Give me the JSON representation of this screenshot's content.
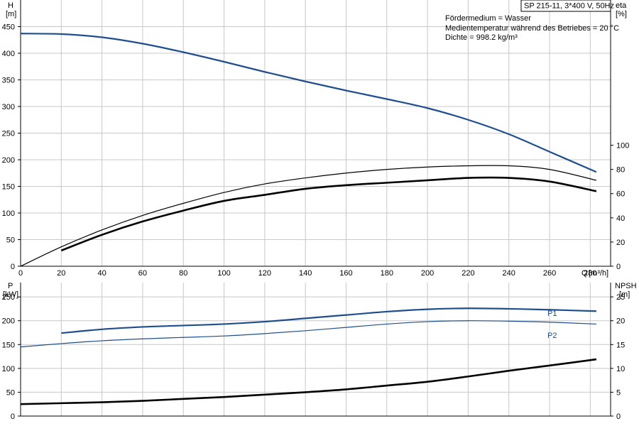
{
  "header": {
    "model": "SP 215-11, 3*400 V, 50Hz",
    "info_lines": [
      "Fördermedium = Wasser",
      "Medientemperatur während des Betriebes = 20 °C",
      "Dichte = 998.2 kg/m³"
    ]
  },
  "colors": {
    "blue": "#1f4e8c",
    "black": "#000000",
    "grid": "#c8c8c8"
  },
  "chart_data": [
    {
      "type": "line",
      "title": "",
      "x_unit_label": "Q [m³/h]",
      "xlabel": "Q",
      "xlabel_unit": "[m³/h]",
      "xlim": [
        0,
        290
      ],
      "x_ticks": [
        0,
        20,
        40,
        60,
        80,
        100,
        120,
        140,
        160,
        180,
        200,
        220,
        240,
        260,
        280
      ],
      "left_axis": {
        "label": "H",
        "unit": "[m]",
        "ylim": [
          0,
          500
        ],
        "ticks": [
          0,
          50,
          100,
          150,
          200,
          250,
          300,
          350,
          400,
          450
        ]
      },
      "right_axis": {
        "label": "eta",
        "unit": "[%]",
        "ylim": [
          0,
          220
        ],
        "ticks": [
          0,
          20,
          40,
          60,
          80,
          100
        ]
      },
      "grid": true,
      "series": [
        {
          "axis": "left",
          "color": "#1f4e8c",
          "style": "thick",
          "x": [
            0,
            20,
            40,
            60,
            80,
            100,
            120,
            140,
            160,
            180,
            200,
            220,
            240,
            260,
            283
          ],
          "y": [
            437,
            436,
            430,
            418,
            402,
            384,
            365,
            347,
            330,
            314,
            297,
            275,
            248,
            215,
            177
          ]
        },
        {
          "axis": "right",
          "color": "#000000",
          "style": "thin",
          "x": [
            0,
            20,
            40,
            60,
            80,
            100,
            120,
            140,
            160,
            180,
            200,
            220,
            240,
            260,
            283
          ],
          "y": [
            0,
            16,
            30,
            42,
            52,
            61,
            68,
            73,
            77,
            80,
            82,
            83,
            83,
            80,
            71
          ]
        },
        {
          "axis": "right",
          "color": "#000000",
          "style": "thick",
          "x": [
            20,
            40,
            60,
            80,
            100,
            120,
            140,
            160,
            180,
            200,
            220,
            240,
            260,
            283
          ],
          "y": [
            13,
            26,
            37,
            46,
            54,
            59,
            64,
            67,
            69,
            71,
            73,
            73,
            70,
            62
          ]
        }
      ]
    },
    {
      "type": "line",
      "title": "",
      "xlim": [
        0,
        290
      ],
      "left_axis": {
        "label": "P",
        "unit": "[kW]",
        "ylim": [
          0,
          280
        ],
        "ticks": [
          0,
          50,
          100,
          150,
          200,
          250
        ]
      },
      "right_axis": {
        "label": "NPSH",
        "unit": "[m]",
        "ylim": [
          0,
          28
        ],
        "ticks": [
          0,
          5,
          10,
          15,
          20,
          25
        ]
      },
      "grid": true,
      "series": [
        {
          "name": "P1",
          "axis": "left",
          "color": "#1f4e8c",
          "style": "thick",
          "x": [
            20,
            40,
            60,
            80,
            100,
            120,
            140,
            160,
            180,
            200,
            220,
            240,
            260,
            283
          ],
          "y": [
            174,
            182,
            187,
            190,
            193,
            198,
            205,
            212,
            219,
            224,
            226,
            225,
            223,
            220
          ]
        },
        {
          "name": "P2",
          "axis": "left",
          "color": "#1f4e8c",
          "style": "thin",
          "x": [
            0,
            20,
            40,
            60,
            80,
            100,
            120,
            140,
            160,
            180,
            200,
            220,
            240,
            260,
            283
          ],
          "y": [
            145,
            152,
            158,
            162,
            165,
            168,
            173,
            179,
            186,
            193,
            198,
            200,
            199,
            197,
            193
          ]
        },
        {
          "axis": "right",
          "color": "#000000",
          "style": "thick",
          "x": [
            0,
            20,
            40,
            60,
            80,
            100,
            120,
            140,
            160,
            180,
            200,
            220,
            240,
            260,
            283
          ],
          "y": [
            2.5,
            2.7,
            2.9,
            3.2,
            3.6,
            4.0,
            4.5,
            5.0,
            5.6,
            6.4,
            7.2,
            8.3,
            9.5,
            10.6,
            11.9
          ]
        }
      ]
    }
  ]
}
